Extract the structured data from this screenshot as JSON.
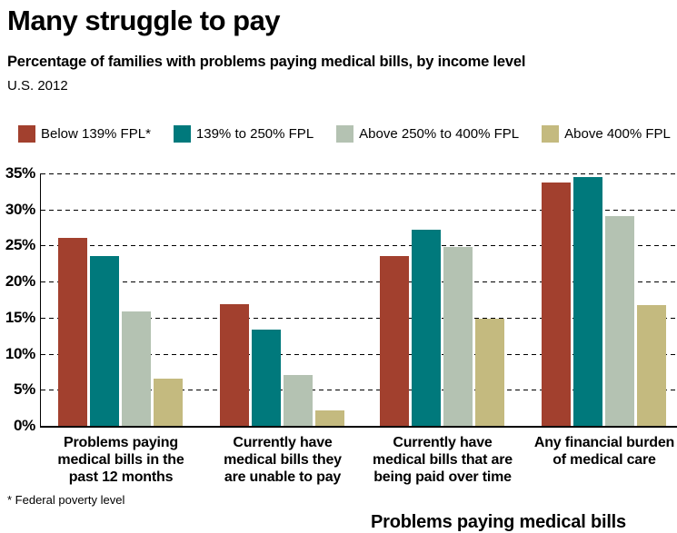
{
  "header": {
    "title": "Many struggle to pay",
    "subtitle": "Percentage of families with problems paying medical bills, by income level",
    "period": "U.S. 2012"
  },
  "chart_data": {
    "type": "bar",
    "title": "Many struggle to pay",
    "subtitle": "Percentage of families with problems paying medical bills, by income level",
    "period": "U.S. 2012",
    "ylim": [
      0,
      35
    ],
    "ytick_step": 5,
    "ytick_suffix": "%",
    "grid": "horizontal-dashed",
    "legend_position": "top",
    "categories": [
      "Problems paying medical bills in the past 12 months",
      "Currently have medical bills they are unable to pay",
      "Currently have medical bills that are being paid over time",
      "Any financial burden of medical care"
    ],
    "category_label_lines": [
      "Problems paying\nmedical bills in the\npast 12 months",
      "Currently have\nmedical bills they\nare unable to pay",
      "Currently have\nmedical bills that are\nbeing paid over time",
      "Any financial burden\nof medical care"
    ],
    "series": [
      {
        "name": "Below 139% FPL*",
        "color": "#A2402E",
        "values": [
          26.1,
          16.9,
          23.6,
          33.7
        ]
      },
      {
        "name": "139% to 250% FPL",
        "color": "#00797C",
        "values": [
          23.5,
          13.3,
          27.2,
          34.5
        ]
      },
      {
        "name": "Above 250% to 400% FPL",
        "color": "#B4C2B2",
        "values": [
          15.9,
          7.1,
          24.8,
          29.1
        ]
      },
      {
        "name": "Above 400% FPL",
        "color": "#C4BA7F",
        "values": [
          6.5,
          2.2,
          14.9,
          16.7
        ]
      }
    ]
  },
  "footnote": "* Federal poverty level",
  "cutoff_text": "Problems paying medical bills"
}
